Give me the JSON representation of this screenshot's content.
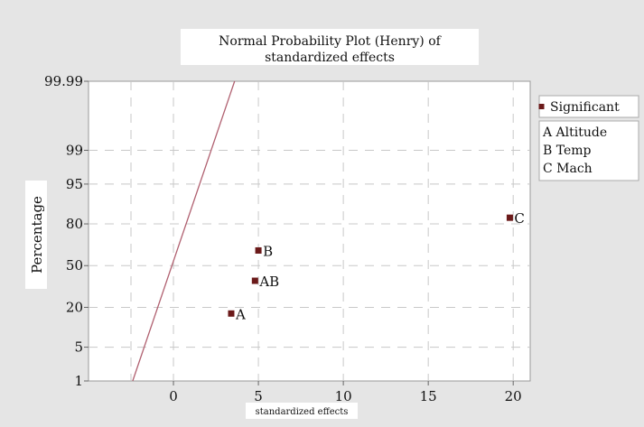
{
  "chart_data": {
    "type": "scatter",
    "title": "Normal Probability Plot (Henry) of standardized effects",
    "title_lines": [
      "Normal Probability Plot (Henry) of",
      "standardized effects"
    ],
    "xlabel": "standardized effects",
    "ylabel": "Percentage",
    "x_scale": "linear",
    "y_scale": "normal-probability",
    "xlim": [
      -5,
      21
    ],
    "ylim": [
      1,
      99.99
    ],
    "x_ticks": [
      0,
      5,
      10,
      15,
      20
    ],
    "y_ticks": [
      1,
      5,
      20,
      50,
      80,
      95,
      99,
      99.99
    ],
    "y_tick_labels": [
      "1",
      "5",
      "20",
      "50",
      "80",
      "95",
      "99",
      "99.99"
    ],
    "grid": true,
    "points": [
      {
        "label": "A",
        "x": 3.4,
        "y": 16.7
      },
      {
        "label": "AB",
        "x": 4.8,
        "y": 38
      },
      {
        "label": "B",
        "x": 5.0,
        "y": 62
      },
      {
        "label": "C",
        "x": 19.8,
        "y": 83.3
      }
    ],
    "reference_line": {
      "x": [
        -2.4,
        3.6
      ],
      "y": [
        1,
        99.99
      ]
    },
    "legend": {
      "placement": "right",
      "marker_label": "Significant",
      "factors": [
        "A Altitude",
        "B Temp",
        "C Mach"
      ]
    },
    "colors": {
      "marker": "#6b1a1a",
      "line": "#b06070",
      "grid": "#c8c8c8",
      "plot_bg": "#ffffff",
      "page_bg": "#e5e5e5"
    }
  }
}
